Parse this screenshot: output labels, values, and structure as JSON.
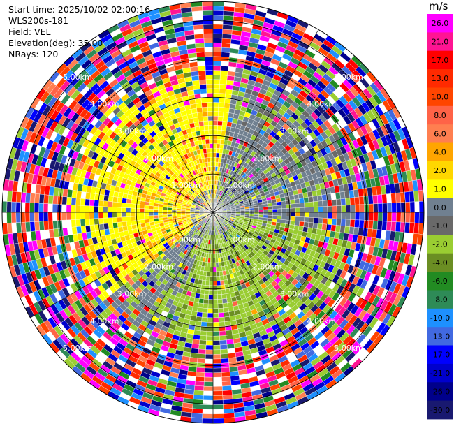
{
  "header": {
    "start_time": "Start time: 2025/10/02 02:00:16",
    "station": "WLS200s-181",
    "field": "Field: VEL",
    "elevation": "Elevation(deg): 35.00",
    "nrays": "NRays: 120"
  },
  "chart_data": {
    "type": "heatmap",
    "projection": "polar PPI",
    "field": "VEL",
    "unit": "m/s",
    "nrays": 120,
    "elevation_deg": 35.0,
    "range_rings": [
      {
        "range_km": 1.0,
        "label": "1.00km"
      },
      {
        "range_km": 2.0,
        "label": "2.00km"
      },
      {
        "range_km": 3.0,
        "label": "3.00km"
      },
      {
        "range_km": 4.0,
        "label": "4.00km"
      },
      {
        "range_km": 5.0,
        "label": "5.00km"
      }
    ],
    "colorbar": {
      "labels": [
        "26.0",
        "21.0",
        "17.0",
        "13.0",
        "10.0",
        "8.0",
        "6.0",
        "4.0",
        "2.0",
        "1.0",
        "0.0",
        "-1.0",
        "-2.0",
        "-4.0",
        "-6.0",
        "-8.0",
        "-10.0",
        "-13.0",
        "-17.0",
        "-21.0",
        "-26.0",
        "-30.0"
      ],
      "colors": [
        "#ff00ff",
        "#ff1493",
        "#ff0000",
        "#ff2a00",
        "#ff4500",
        "#ff6347",
        "#ff7f50",
        "#ffa500",
        "#ffd700",
        "#ffff00",
        "#708090",
        "#696969",
        "#9acd32",
        "#6b8e23",
        "#228b22",
        "#2e8b57",
        "#1e90ff",
        "#4169e1",
        "#0000ff",
        "#0000cd",
        "#00008b",
        "#191970"
      ]
    }
  }
}
